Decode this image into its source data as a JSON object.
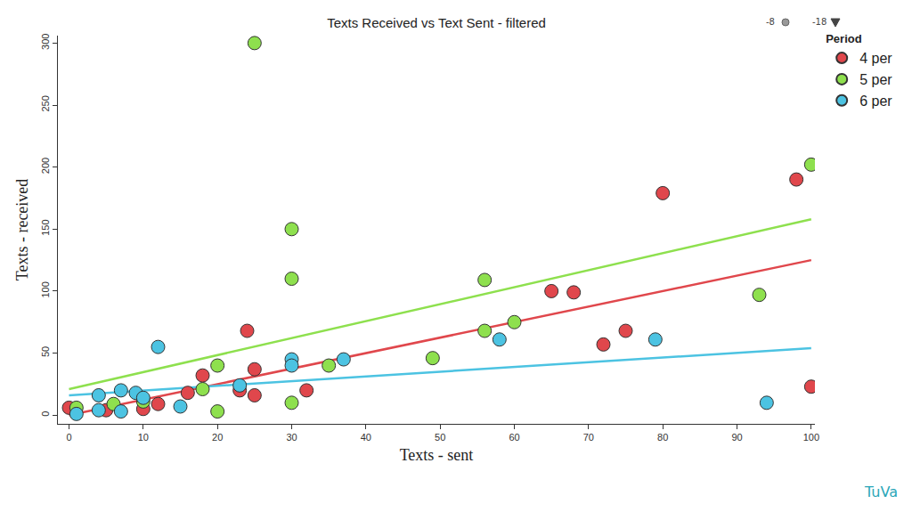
{
  "chart_data": {
    "type": "scatter",
    "title": "Texts Received vs Text Sent - filtered",
    "x_label": "Texts - sent",
    "y_label": "Texts - received",
    "legend_title": "Period",
    "legend": "upper right",
    "grid": false,
    "marker": "circle",
    "xlim": [
      -1.5,
      100.5
    ],
    "xticks": [
      0,
      10,
      20,
      30,
      40,
      50,
      60,
      70,
      80,
      90,
      100
    ],
    "ylim": [
      -7,
      306
    ],
    "yticks": [
      0,
      50,
      100,
      150,
      200,
      250,
      300
    ],
    "annotations": [
      "-8",
      "-18",
      "TuVa"
    ],
    "series": [
      {
        "name": "4 per",
        "color": "#e0474c",
        "x": [
          0,
          5,
          10,
          12,
          16,
          18,
          23,
          24,
          25,
          25,
          32,
          65,
          68,
          72,
          75,
          80,
          98,
          100
        ],
        "values": [
          6,
          4,
          5,
          9,
          18,
          32,
          20,
          68,
          37,
          16,
          20,
          100,
          99,
          57,
          68,
          179,
          190,
          23
        ],
        "trend": {
          "x": [
            0,
            100
          ],
          "values": [
            0,
            125
          ]
        }
      },
      {
        "name": "5 per",
        "color": "#8ee04e",
        "x": [
          1,
          6,
          10,
          18,
          20,
          20,
          25,
          30,
          30,
          30,
          35,
          49,
          56,
          56,
          60,
          93,
          100
        ],
        "values": [
          6,
          9,
          11,
          21,
          40,
          3,
          300,
          150,
          110,
          10,
          40,
          46,
          109,
          68,
          75,
          97,
          202
        ],
        "trend": {
          "x": [
            0,
            100
          ],
          "values": [
            21,
            158
          ]
        }
      },
      {
        "name": "6 per",
        "color": "#4cc3e2",
        "x": [
          1,
          4,
          4,
          7,
          7,
          9,
          10,
          12,
          15,
          23,
          30,
          30,
          37,
          58,
          79,
          94
        ],
        "values": [
          1,
          16,
          4,
          20,
          3,
          18,
          14,
          55,
          7,
          24,
          45,
          40,
          45,
          61,
          61,
          10
        ],
        "trend": {
          "x": [
            0,
            100
          ],
          "values": [
            16,
            54
          ]
        }
      }
    ]
  }
}
